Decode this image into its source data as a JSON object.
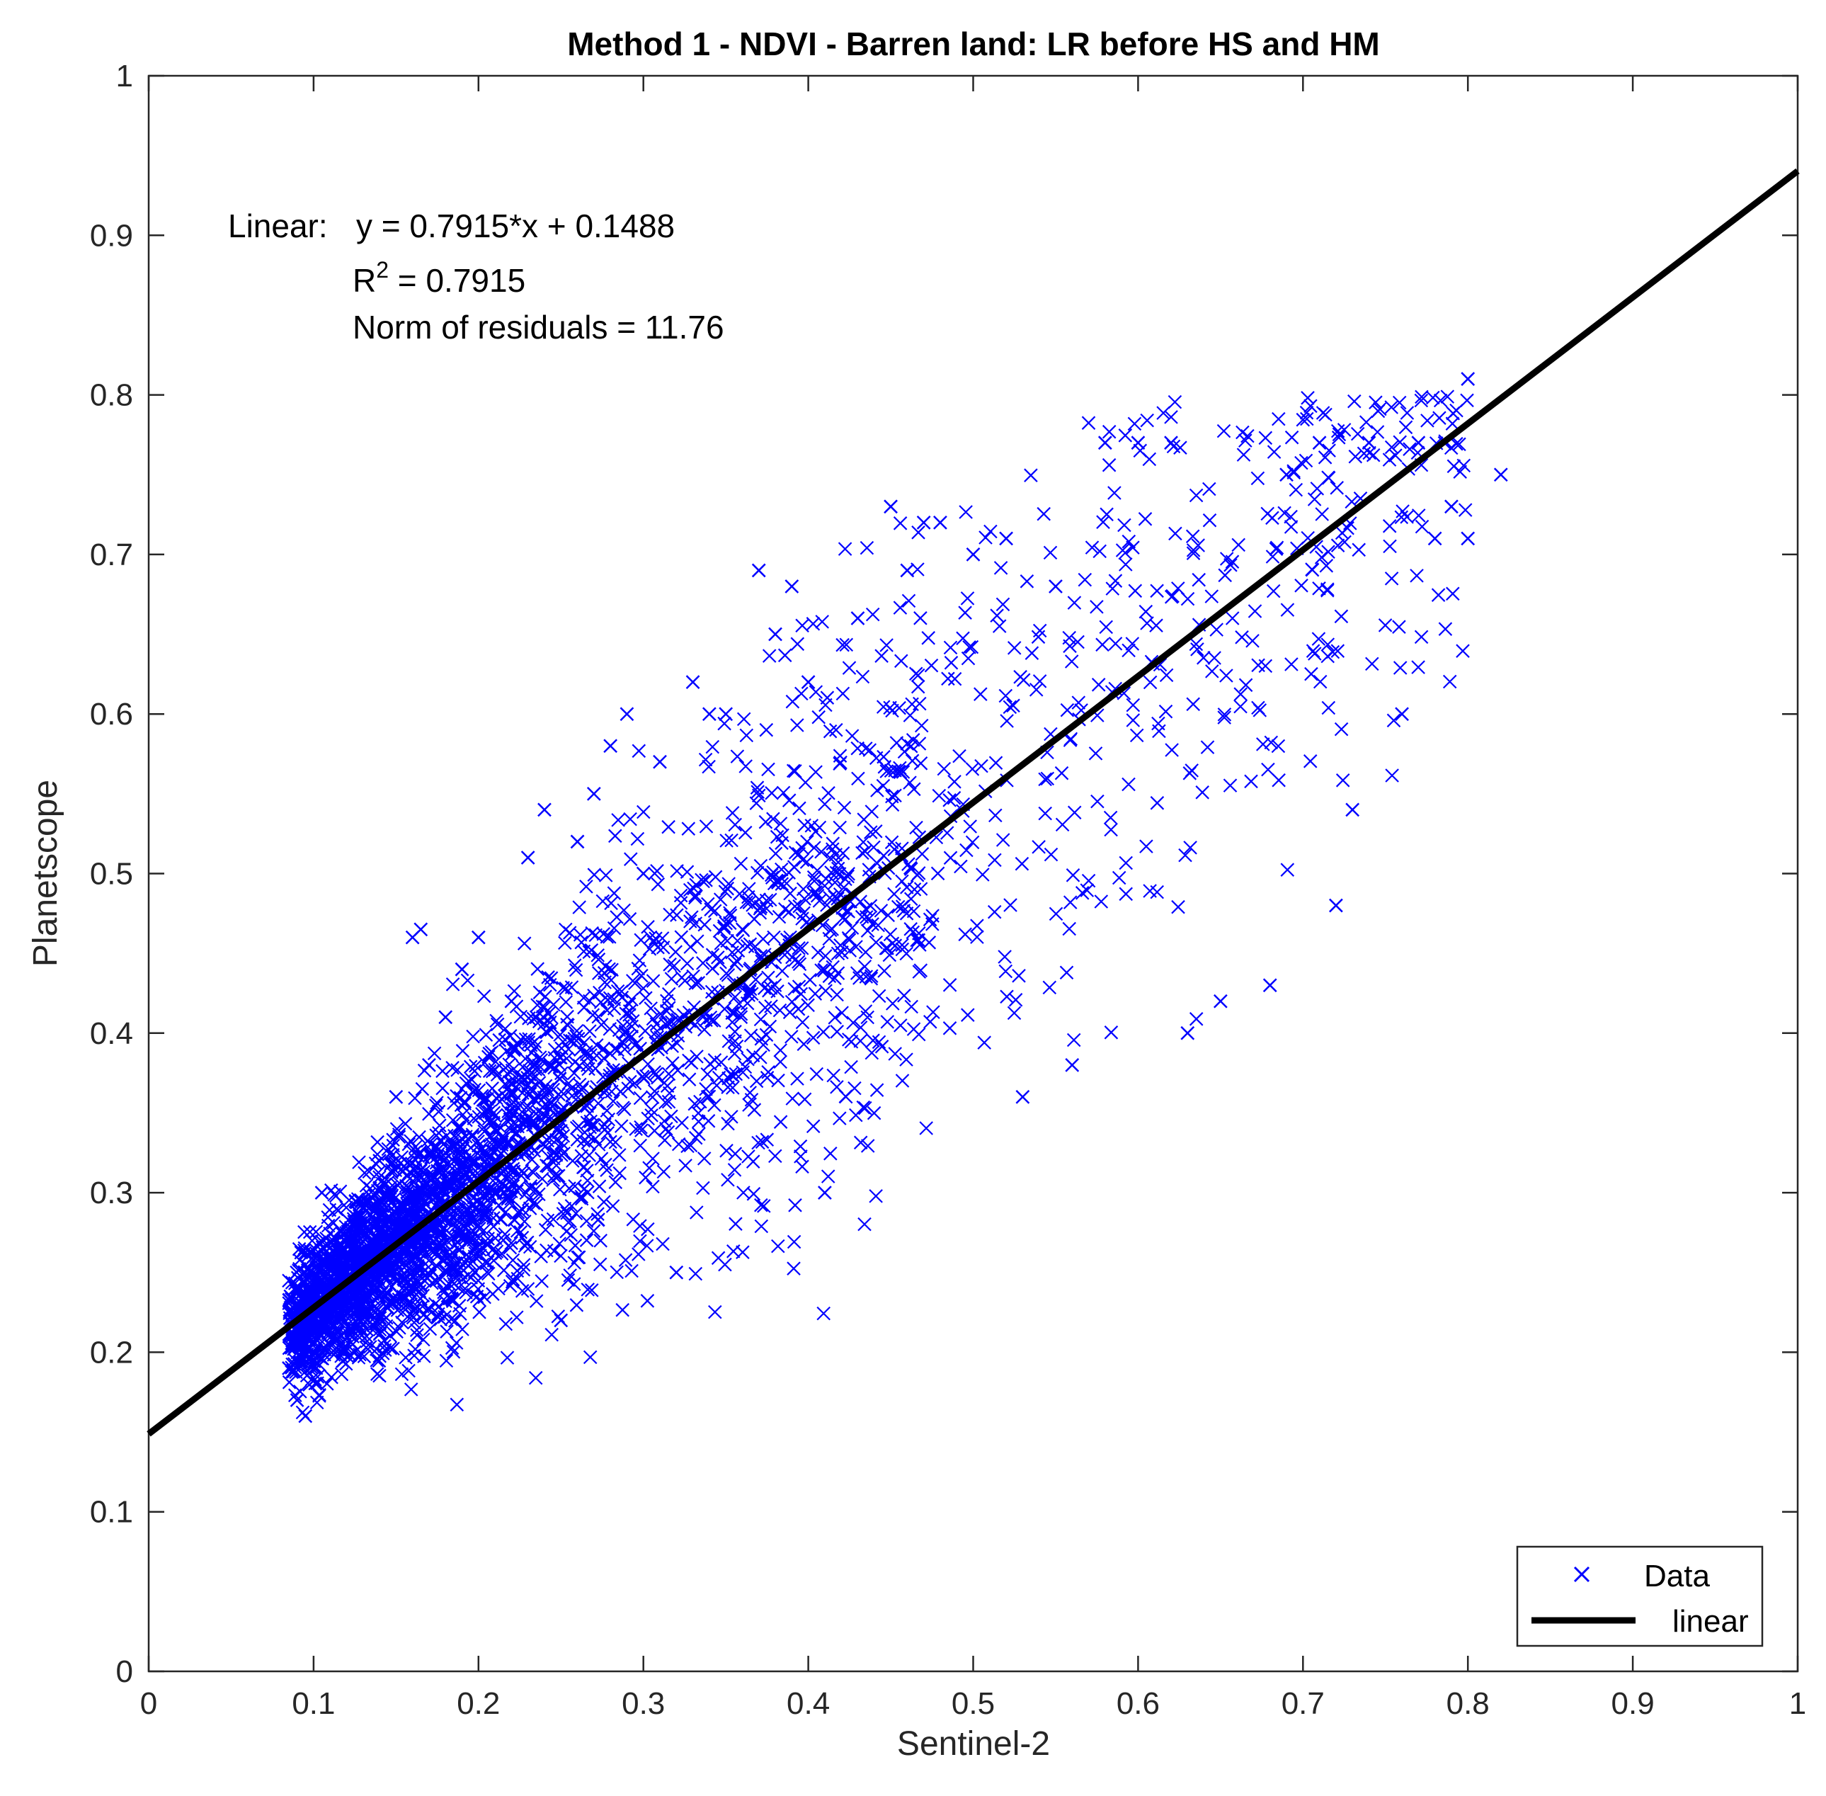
{
  "chart_data": {
    "type": "scatter",
    "title": "Method 1 - NDVI - Barren land: LR before HS and HM",
    "xlabel": "Sentinel-2",
    "ylabel": "Planetscope",
    "xlim": [
      0,
      1
    ],
    "ylim": [
      0,
      1
    ],
    "grid": false,
    "legend_position": "bottom-right",
    "xticks": [
      "0",
      "0.1",
      "0.2",
      "0.3",
      "0.4",
      "0.5",
      "0.6",
      "0.7",
      "0.8",
      "0.9",
      "1"
    ],
    "yticks": [
      "0",
      "0.1",
      "0.2",
      "0.3",
      "0.4",
      "0.5",
      "0.6",
      "0.7",
      "0.8",
      "0.9",
      "1"
    ],
    "annotation": {
      "linear_label": "Linear:",
      "equation": "y = 0.7915*x + 0.1488",
      "r2_prefix": "R",
      "r2_sup": "2",
      "r2_value": " = 0.7915",
      "norm": "Norm of residuals = 11.76"
    },
    "series": [
      {
        "name": "Data",
        "marker": "x",
        "color": "#0000FF",
        "points": [
          [
            0.085,
            0.19
          ],
          [
            0.09,
            0.17
          ],
          [
            0.095,
            0.16
          ],
          [
            0.086,
            0.235
          ],
          [
            0.1,
            0.26
          ],
          [
            0.105,
            0.3
          ],
          [
            0.11,
            0.22
          ],
          [
            0.12,
            0.24
          ],
          [
            0.125,
            0.2
          ],
          [
            0.13,
            0.28
          ],
          [
            0.14,
            0.32
          ],
          [
            0.15,
            0.36
          ],
          [
            0.16,
            0.46
          ],
          [
            0.165,
            0.465
          ],
          [
            0.17,
            0.38
          ],
          [
            0.18,
            0.41
          ],
          [
            0.19,
            0.44
          ],
          [
            0.2,
            0.46
          ],
          [
            0.21,
            0.3
          ],
          [
            0.22,
            0.42
          ],
          [
            0.23,
            0.51
          ],
          [
            0.24,
            0.54
          ],
          [
            0.25,
            0.22
          ],
          [
            0.26,
            0.52
          ],
          [
            0.27,
            0.55
          ],
          [
            0.28,
            0.58
          ],
          [
            0.29,
            0.6
          ],
          [
            0.3,
            0.5
          ],
          [
            0.31,
            0.57
          ],
          [
            0.32,
            0.25
          ],
          [
            0.33,
            0.62
          ],
          [
            0.34,
            0.6
          ],
          [
            0.35,
            0.6
          ],
          [
            0.37,
            0.69
          ],
          [
            0.38,
            0.65
          ],
          [
            0.39,
            0.68
          ],
          [
            0.4,
            0.62
          ],
          [
            0.41,
            0.3
          ],
          [
            0.43,
            0.66
          ],
          [
            0.45,
            0.73
          ],
          [
            0.46,
            0.69
          ],
          [
            0.47,
            0.72
          ],
          [
            0.48,
            0.72
          ],
          [
            0.5,
            0.7
          ],
          [
            0.52,
            0.71
          ],
          [
            0.53,
            0.36
          ],
          [
            0.55,
            0.68
          ],
          [
            0.56,
            0.38
          ],
          [
            0.58,
            0.77
          ],
          [
            0.6,
            0.77
          ],
          [
            0.62,
            0.77
          ],
          [
            0.63,
            0.4
          ],
          [
            0.65,
            0.42
          ],
          [
            0.68,
            0.43
          ],
          [
            0.69,
            0.75
          ],
          [
            0.71,
            0.77
          ],
          [
            0.72,
            0.48
          ],
          [
            0.74,
            0.77
          ],
          [
            0.76,
            0.6
          ],
          [
            0.77,
            0.77
          ],
          [
            0.78,
            0.71
          ],
          [
            0.79,
            0.73
          ],
          [
            0.8,
            0.81
          ],
          [
            0.82,
            0.75
          ],
          [
            0.8,
            0.71
          ],
          [
            0.73,
            0.54
          ]
        ],
        "cloud_note_regression": {
          "slope": 0.7915,
          "intercept": 0.1488
        }
      },
      {
        "name": "linear",
        "type": "line",
        "color": "#000000",
        "x": [
          0,
          1
        ],
        "y": [
          0.1488,
          0.9403
        ]
      }
    ]
  }
}
